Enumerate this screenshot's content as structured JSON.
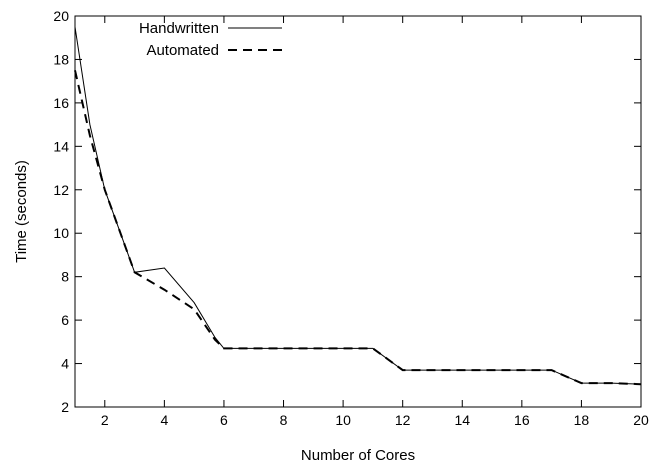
{
  "chart_data": {
    "type": "line",
    "xlabel": "Number of Cores",
    "ylabel": "Time (seconds)",
    "xlim": [
      1,
      20
    ],
    "ylim": [
      2,
      20
    ],
    "xticks": [
      2,
      4,
      6,
      8,
      10,
      12,
      14,
      16,
      18,
      20
    ],
    "yticks": [
      2,
      4,
      6,
      8,
      10,
      12,
      14,
      16,
      18,
      20
    ],
    "grid": false,
    "legend_position": "top-left",
    "series": [
      {
        "name": "Handwritten",
        "style": "solid",
        "color": "#000000",
        "points": [
          [
            1,
            19.5
          ],
          [
            1.5,
            15.0
          ],
          [
            2,
            12.0
          ],
          [
            3,
            8.2
          ],
          [
            4,
            8.4
          ],
          [
            5,
            6.8
          ],
          [
            5.7,
            5.2
          ],
          [
            6,
            4.7
          ],
          [
            7,
            4.7
          ],
          [
            8,
            4.7
          ],
          [
            9,
            4.7
          ],
          [
            10,
            4.7
          ],
          [
            11,
            4.7
          ],
          [
            12,
            3.7
          ],
          [
            13,
            3.7
          ],
          [
            14,
            3.7
          ],
          [
            15,
            3.7
          ],
          [
            16,
            3.7
          ],
          [
            17,
            3.7
          ],
          [
            18,
            3.1
          ],
          [
            19,
            3.1
          ],
          [
            20,
            3.05
          ]
        ]
      },
      {
        "name": "Automated",
        "style": "dashed",
        "color": "#000000",
        "points": [
          [
            1,
            17.5
          ],
          [
            1.5,
            14.5
          ],
          [
            2,
            12.0
          ],
          [
            3,
            8.2
          ],
          [
            4,
            7.4
          ],
          [
            5,
            6.5
          ],
          [
            5.7,
            5.1
          ],
          [
            6,
            4.7
          ],
          [
            7,
            4.7
          ],
          [
            8,
            4.7
          ],
          [
            9,
            4.7
          ],
          [
            10,
            4.7
          ],
          [
            11,
            4.7
          ],
          [
            12,
            3.7
          ],
          [
            13,
            3.7
          ],
          [
            14,
            3.7
          ],
          [
            15,
            3.7
          ],
          [
            16,
            3.7
          ],
          [
            17,
            3.7
          ],
          [
            18,
            3.1
          ],
          [
            19,
            3.1
          ],
          [
            20,
            3.05
          ]
        ]
      }
    ]
  }
}
